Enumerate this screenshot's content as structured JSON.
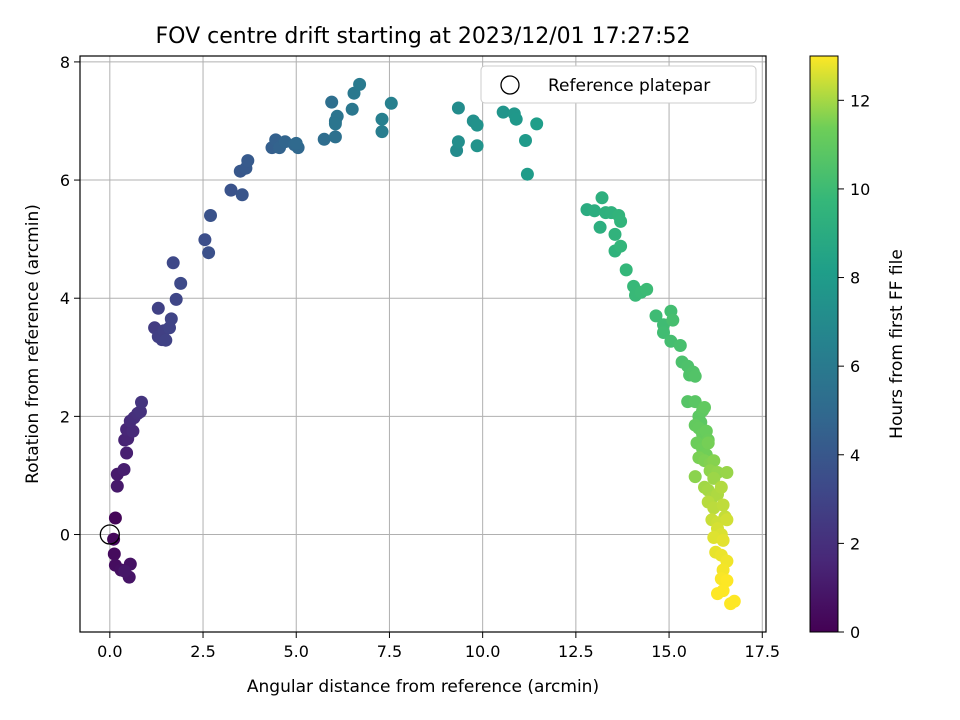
{
  "chart_data": {
    "type": "scatter",
    "title": "FOV centre drift starting at 2023/12/01 17:27:52",
    "xlabel": "Angular distance from reference (arcmin)",
    "ylabel": "Rotation from reference (arcmin)",
    "xlim": [
      -0.8,
      17.6
    ],
    "ylim": [
      -1.65,
      8.1
    ],
    "xticks": [
      "0.0",
      "2.5",
      "5.0",
      "7.5",
      "10.0",
      "12.5",
      "15.0",
      "17.5"
    ],
    "xtick_values": [
      0,
      2.5,
      5,
      7.5,
      10,
      12.5,
      15,
      17.5
    ],
    "yticks": [
      "0",
      "2",
      "4",
      "6",
      "8"
    ],
    "ytick_values": [
      0,
      2,
      4,
      6,
      8
    ],
    "grid": true,
    "legend": {
      "placement": "top-right",
      "entries": [
        "Reference platepar"
      ]
    },
    "reference_point": {
      "x": 0,
      "y": 0
    },
    "colorbar": {
      "label": "Hours from first FF file",
      "min": 0,
      "max": 13,
      "ticks": [
        "0",
        "2",
        "4",
        "6",
        "8",
        "10",
        "12"
      ],
      "tick_values": [
        0,
        2,
        4,
        6,
        8,
        10,
        12
      ],
      "colormap": "viridis"
    },
    "series": [
      {
        "points": [
          [
            0.15,
            0.28,
            0.2
          ],
          [
            0.1,
            -0.08,
            0.3
          ],
          [
            0.12,
            -0.33,
            0.4
          ],
          [
            0.15,
            -0.52,
            0.5
          ],
          [
            0.3,
            -0.6,
            0.6
          ],
          [
            0.55,
            -0.5,
            0.7
          ],
          [
            0.52,
            -0.72,
            0.8
          ],
          [
            0.4,
            -0.62,
            0.9
          ],
          [
            0.2,
            0.82,
            1.0
          ],
          [
            0.2,
            1.02,
            1.1
          ],
          [
            0.38,
            1.1,
            1.2
          ],
          [
            0.45,
            1.38,
            1.3
          ],
          [
            0.4,
            1.6,
            1.4
          ],
          [
            0.48,
            1.62,
            1.5
          ],
          [
            0.45,
            1.78,
            1.6
          ],
          [
            0.62,
            1.75,
            1.7
          ],
          [
            0.55,
            1.92,
            1.8
          ],
          [
            0.65,
            1.98,
            1.9
          ],
          [
            0.75,
            2.05,
            2.0
          ],
          [
            0.82,
            2.08,
            2.1
          ],
          [
            0.85,
            2.24,
            2.2
          ],
          [
            1.2,
            3.5,
            2.6
          ],
          [
            1.3,
            3.35,
            2.7
          ],
          [
            1.4,
            3.3,
            2.75
          ],
          [
            1.45,
            3.45,
            2.8
          ],
          [
            1.3,
            3.83,
            2.85
          ],
          [
            1.5,
            3.29,
            2.9
          ],
          [
            1.6,
            3.5,
            2.95
          ],
          [
            1.65,
            3.65,
            3.0
          ],
          [
            1.78,
            3.98,
            3.1
          ],
          [
            1.7,
            4.6,
            3.2
          ],
          [
            1.9,
            4.25,
            3.3
          ],
          [
            2.55,
            4.99,
            3.5
          ],
          [
            2.65,
            4.77,
            3.6
          ],
          [
            2.7,
            5.4,
            3.7
          ],
          [
            3.25,
            5.83,
            3.8
          ],
          [
            3.55,
            5.75,
            3.9
          ],
          [
            3.5,
            6.15,
            4.0
          ],
          [
            3.65,
            6.2,
            4.1
          ],
          [
            3.7,
            6.33,
            4.15
          ],
          [
            4.35,
            6.55,
            4.4
          ],
          [
            4.45,
            6.68,
            4.5
          ],
          [
            4.55,
            6.55,
            4.6
          ],
          [
            4.7,
            6.65,
            4.7
          ],
          [
            4.95,
            6.6,
            4.8
          ],
          [
            5.05,
            6.55,
            4.9
          ],
          [
            5.0,
            6.62,
            5.0
          ],
          [
            5.75,
            6.69,
            5.2
          ],
          [
            5.95,
            7.32,
            5.3
          ],
          [
            6.05,
            6.73,
            5.4
          ],
          [
            6.05,
            7.0,
            5.5
          ],
          [
            6.1,
            7.08,
            5.6
          ],
          [
            6.05,
            6.95,
            5.7
          ],
          [
            6.5,
            7.2,
            5.8
          ],
          [
            6.55,
            7.47,
            5.9
          ],
          [
            6.7,
            7.62,
            6.0
          ],
          [
            7.3,
            6.82,
            6.2
          ],
          [
            7.3,
            7.03,
            6.3
          ],
          [
            7.55,
            7.3,
            6.4
          ],
          [
            9.3,
            6.5,
            7.0
          ],
          [
            9.35,
            7.22,
            7.1
          ],
          [
            9.35,
            6.65,
            7.2
          ],
          [
            9.75,
            7.0,
            7.3
          ],
          [
            9.85,
            6.93,
            7.4
          ],
          [
            9.85,
            6.58,
            7.5
          ],
          [
            10.55,
            7.15,
            7.6
          ],
          [
            10.85,
            7.12,
            7.7
          ],
          [
            10.9,
            7.03,
            7.8
          ],
          [
            11.15,
            6.67,
            7.9
          ],
          [
            11.2,
            6.1,
            8.0
          ],
          [
            11.45,
            6.95,
            8.1
          ],
          [
            12.8,
            5.5,
            9.0
          ],
          [
            13.0,
            5.48,
            9.1
          ],
          [
            13.15,
            5.2,
            9.15
          ],
          [
            13.2,
            5.7,
            9.2
          ],
          [
            13.3,
            5.45,
            9.3
          ],
          [
            13.45,
            5.45,
            9.35
          ],
          [
            13.55,
            4.8,
            9.4
          ],
          [
            13.55,
            5.08,
            9.45
          ],
          [
            13.65,
            5.4,
            9.5
          ],
          [
            13.7,
            5.3,
            9.55
          ],
          [
            13.7,
            4.88,
            9.6
          ],
          [
            13.85,
            4.48,
            9.7
          ],
          [
            14.05,
            4.2,
            9.8
          ],
          [
            14.1,
            4.05,
            9.85
          ],
          [
            14.25,
            4.1,
            9.9
          ],
          [
            14.4,
            4.15,
            9.95
          ],
          [
            14.65,
            3.7,
            10.0
          ],
          [
            14.85,
            3.55,
            10.05
          ],
          [
            14.85,
            3.42,
            10.1
          ],
          [
            15.05,
            3.78,
            10.15
          ],
          [
            15.05,
            3.27,
            10.2
          ],
          [
            15.1,
            3.63,
            10.25
          ],
          [
            15.3,
            3.2,
            10.3
          ],
          [
            15.35,
            2.92,
            10.4
          ],
          [
            15.5,
            2.85,
            10.45
          ],
          [
            15.55,
            2.7,
            10.5
          ],
          [
            15.65,
            2.75,
            10.55
          ],
          [
            15.7,
            2.68,
            10.6
          ],
          [
            15.5,
            2.25,
            10.7
          ],
          [
            15.7,
            2.25,
            10.8
          ],
          [
            15.8,
            2.0,
            10.85
          ],
          [
            15.85,
            1.9,
            10.9
          ],
          [
            15.9,
            2.1,
            10.95
          ],
          [
            15.95,
            2.15,
            11.0
          ],
          [
            15.7,
            1.85,
            11.05
          ],
          [
            15.8,
            1.8,
            11.1
          ],
          [
            15.9,
            1.7,
            11.15
          ],
          [
            16.0,
            1.75,
            11.2
          ],
          [
            16.05,
            1.6,
            11.25
          ],
          [
            15.75,
            1.55,
            11.3
          ],
          [
            15.9,
            1.45,
            11.35
          ],
          [
            16.0,
            1.35,
            11.4
          ],
          [
            16.05,
            1.55,
            11.45
          ],
          [
            15.8,
            1.3,
            11.5
          ],
          [
            15.95,
            1.25,
            11.55
          ],
          [
            16.1,
            1.2,
            11.6
          ],
          [
            16.2,
            1.25,
            11.65
          ],
          [
            15.7,
            0.98,
            11.7
          ],
          [
            16.1,
            1.08,
            11.75
          ],
          [
            16.3,
            1.05,
            11.8
          ],
          [
            16.55,
            1.05,
            11.85
          ],
          [
            16.2,
            0.95,
            11.9
          ],
          [
            15.95,
            0.8,
            11.95
          ],
          [
            16.05,
            0.75,
            12.0
          ],
          [
            16.15,
            0.62,
            12.05
          ],
          [
            16.3,
            0.68,
            12.1
          ],
          [
            16.4,
            0.8,
            12.15
          ],
          [
            16.05,
            0.55,
            12.2
          ],
          [
            16.2,
            0.45,
            12.25
          ],
          [
            16.45,
            0.5,
            12.3
          ],
          [
            16.5,
            0.3,
            12.35
          ],
          [
            16.15,
            0.25,
            12.4
          ],
          [
            16.3,
            0.2,
            12.45
          ],
          [
            16.55,
            0.25,
            12.5
          ],
          [
            16.3,
            0.1,
            12.55
          ],
          [
            16.4,
            0.0,
            12.6
          ],
          [
            16.2,
            -0.05,
            12.65
          ],
          [
            16.45,
            -0.1,
            12.7
          ],
          [
            16.25,
            -0.3,
            12.75
          ],
          [
            16.4,
            -0.35,
            12.8
          ],
          [
            16.55,
            -0.45,
            12.85
          ],
          [
            16.45,
            -0.6,
            12.9
          ],
          [
            16.4,
            -0.75,
            12.95
          ],
          [
            16.55,
            -0.78,
            13.0
          ],
          [
            16.3,
            -1.0,
            13.0
          ],
          [
            16.45,
            -0.95,
            13.0
          ],
          [
            16.65,
            -1.17,
            13.0
          ],
          [
            16.75,
            -1.13,
            13.0
          ]
        ]
      }
    ]
  }
}
